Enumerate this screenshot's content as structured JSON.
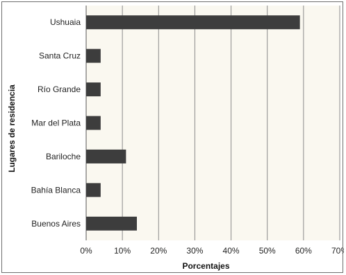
{
  "chart_data": {
    "type": "bar",
    "orientation": "horizontal",
    "categories": [
      "Ushuaia",
      "Santa Cruz",
      "Río Grande",
      "Mar del Plata",
      "Bariloche",
      "Bahía Blanca",
      "Buenos Aires"
    ],
    "values": [
      59,
      4,
      4,
      4,
      11,
      4,
      14
    ],
    "xlabel": "Porcentajes",
    "ylabel": "Lugares de residencia",
    "xlim": [
      0,
      70
    ],
    "x_ticks": [
      "0%",
      "10%",
      "20%",
      "30%",
      "40%",
      "50%",
      "60%",
      "70%"
    ],
    "grid": "vertical",
    "legend": "none"
  },
  "colors": {
    "bar": "#3d3d3d",
    "plot_background": "#faf8f0",
    "gridline": "#8a8a8a"
  }
}
